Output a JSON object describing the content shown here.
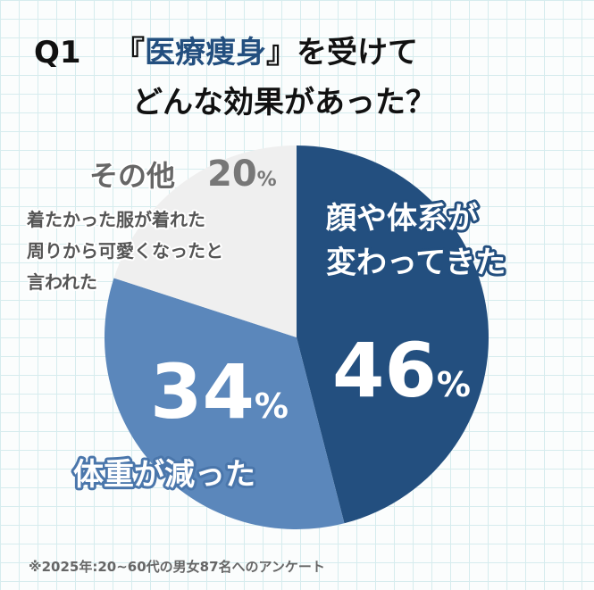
{
  "chart_data": {
    "type": "pie",
    "title": {
      "number": "Q1",
      "line1": [
        "『",
        "医療痩身",
        "』を受けて"
      ],
      "line2": "どんな効果があった？"
    },
    "categories": [
      "顔や体系が\n変わってきた",
      "体重が減った",
      "その他"
    ],
    "values": [
      46,
      34,
      20
    ],
    "value_labels": [
      "46%",
      "34%",
      "20%"
    ],
    "colors": [
      "#234f7f",
      "#5b87bb",
      "#efefef"
    ],
    "annotation": "着たかった服が着れた\n周りから可愛くなったと\n言われた",
    "footnote": "※2025年:20~60代の男女87名へのアンケート"
  }
}
